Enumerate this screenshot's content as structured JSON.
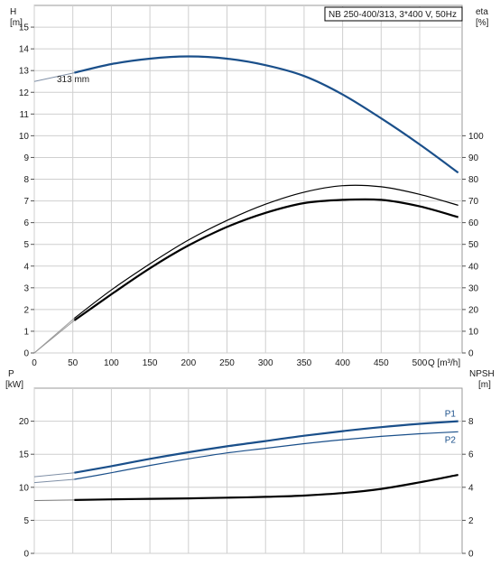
{
  "chart_data": [
    {
      "type": "line",
      "title": "NB 250-400/313, 3*400 V, 50Hz",
      "xlabel": "Q [m³/h]",
      "x_ticks": [
        0,
        50,
        100,
        150,
        200,
        250,
        300,
        350,
        400,
        450,
        500
      ],
      "x_range": [
        0,
        555
      ],
      "y_left_label": [
        "H",
        "[m]"
      ],
      "y_left_ticks": [
        0,
        1,
        2,
        3,
        4,
        5,
        6,
        7,
        8,
        9,
        10,
        11,
        12,
        13,
        14,
        15
      ],
      "y_left_range": [
        0,
        16
      ],
      "y_right_label": [
        "eta",
        "[%]"
      ],
      "y_right_ticks": [
        0,
        10,
        20,
        30,
        40,
        50,
        60,
        70,
        80,
        90,
        100
      ],
      "y_right_range": [
        0,
        160
      ],
      "grid": true,
      "series": [
        {
          "name": "313 mm",
          "axis": "H",
          "color": "#1a4f8a",
          "x": [
            0,
            52,
            100,
            150,
            200,
            250,
            300,
            350,
            400,
            450,
            500,
            550
          ],
          "y": [
            12.5,
            12.9,
            13.3,
            13.55,
            13.65,
            13.55,
            13.25,
            12.75,
            11.9,
            10.8,
            9.6,
            8.3
          ]
        },
        {
          "name": "",
          "axis": "eta",
          "color": "#000000",
          "x": [
            52,
            100,
            150,
            200,
            250,
            300,
            350,
            400,
            450,
            500,
            550
          ],
          "y": [
            16,
            29,
            41,
            52,
            61,
            68.5,
            74,
            77,
            76.5,
            73,
            68
          ]
        },
        {
          "name": "",
          "axis": "eta",
          "color": "#000000",
          "x": [
            52,
            100,
            150,
            200,
            250,
            300,
            350,
            400,
            450,
            500,
            550
          ],
          "y": [
            15,
            27,
            39,
            49.5,
            58,
            64.5,
            69,
            70.5,
            70.5,
            67.5,
            62.5
          ]
        }
      ]
    },
    {
      "type": "line",
      "title": "",
      "xlabel": "",
      "x_range": [
        0,
        555
      ],
      "y_left_label": [
        "P",
        "[kW]"
      ],
      "y_left_ticks": [
        0,
        5,
        10,
        15,
        20
      ],
      "y_left_range": [
        0,
        25
      ],
      "y_right_label": [
        "NPSH",
        "[m]"
      ],
      "y_right_ticks": [
        0,
        2,
        4,
        6,
        8
      ],
      "y_right_range": [
        0,
        10
      ],
      "grid": true,
      "series": [
        {
          "name": "P1",
          "axis": "P",
          "color": "#1a4f8a",
          "x": [
            0,
            52,
            100,
            150,
            200,
            250,
            300,
            350,
            400,
            450,
            500,
            550
          ],
          "y": [
            11.6,
            12.2,
            13.2,
            14.3,
            15.3,
            16.2,
            17.0,
            17.8,
            18.5,
            19.1,
            19.6,
            20.0
          ]
        },
        {
          "name": "P2",
          "axis": "P",
          "color": "#1a4f8a",
          "x": [
            0,
            52,
            100,
            150,
            200,
            250,
            300,
            350,
            400,
            450,
            500,
            550
          ],
          "y": [
            10.7,
            11.2,
            12.2,
            13.3,
            14.3,
            15.2,
            15.9,
            16.6,
            17.2,
            17.7,
            18.1,
            18.4
          ]
        },
        {
          "name": "",
          "axis": "NPSH",
          "color": "#000000",
          "x": [
            0,
            52,
            100,
            150,
            200,
            250,
            300,
            350,
            400,
            450,
            500,
            550
          ],
          "y": [
            3.2,
            3.23,
            3.27,
            3.3,
            3.33,
            3.37,
            3.42,
            3.5,
            3.65,
            3.9,
            4.3,
            4.75
          ]
        }
      ]
    }
  ]
}
